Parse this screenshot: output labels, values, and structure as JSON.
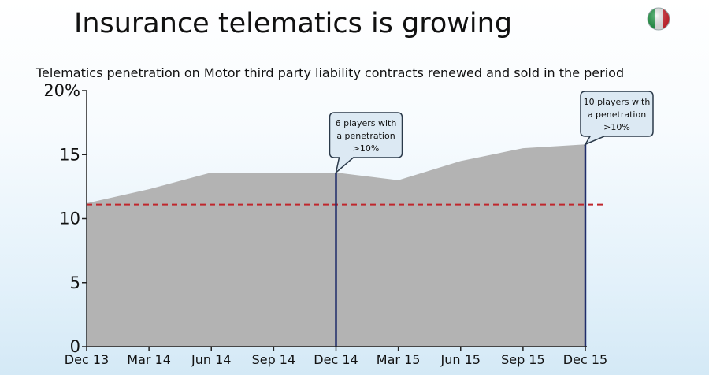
{
  "slide": {
    "title": "Insurance telematics is growing",
    "subtitle": "Telematics penetration on Motor third party liability contracts renewed and sold in the period"
  },
  "flag_icon": "italy-flag-icon",
  "colors": {
    "area_fill": "#b3b3b3",
    "reference_line": "#c0272d",
    "marker_line": "#1f2d6b",
    "callout_fill": "#dce9f3",
    "callout_stroke": "#2b3a4a",
    "axis": "#222222"
  },
  "chart_data": {
    "type": "area",
    "categories": [
      "Dec 13",
      "Mar 14",
      "Jun 14",
      "Sep 14",
      "Dec 14",
      "Mar 15",
      "Jun 15",
      "Sep 15",
      "Dec 15"
    ],
    "series": [
      {
        "values": [
          11.2,
          12.3,
          13.6,
          13.6,
          13.6,
          13.0,
          14.5,
          15.5,
          15.8
        ]
      }
    ],
    "ylim": [
      0,
      20
    ],
    "yticks": [
      {
        "value": 0,
        "label": "0"
      },
      {
        "value": 5,
        "label": "5"
      },
      {
        "value": 10,
        "label": "10"
      },
      {
        "value": 15,
        "label": "15"
      },
      {
        "value": 20,
        "label": "20%"
      }
    ],
    "reference_line": {
      "value": 11.1,
      "style": "dashed"
    },
    "markers": [
      {
        "category": "Dec 14",
        "lines": [
          "6 players with",
          "a penetration",
          ">10%"
        ]
      },
      {
        "category": "Dec 15",
        "lines": [
          "10 players with",
          "a penetration",
          ">10%"
        ]
      }
    ],
    "grid": false
  }
}
